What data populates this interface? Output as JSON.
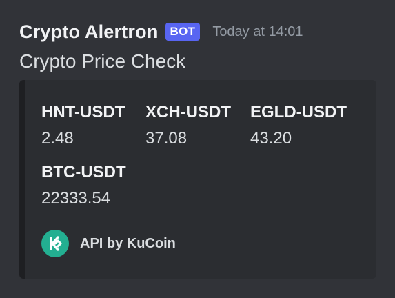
{
  "message": {
    "author": "Crypto Alertron",
    "bot_tag": "BOT",
    "timestamp": "Today at 14:01",
    "content": "Crypto Price Check"
  },
  "embed": {
    "fields": [
      {
        "name": "HNT-USDT",
        "value": "2.48"
      },
      {
        "name": "XCH-USDT",
        "value": "37.08"
      },
      {
        "name": "EGLD-USDT",
        "value": "43.20"
      },
      {
        "name": "BTC-USDT",
        "value": "22333.54"
      }
    ],
    "footer": {
      "icon": "kucoin-logo-icon",
      "text": "API by KuCoin",
      "icon_color": "#23af91"
    }
  },
  "colors": {
    "background": "#313338",
    "embed_background": "#2b2d31",
    "bot_tag": "#5865f2"
  }
}
